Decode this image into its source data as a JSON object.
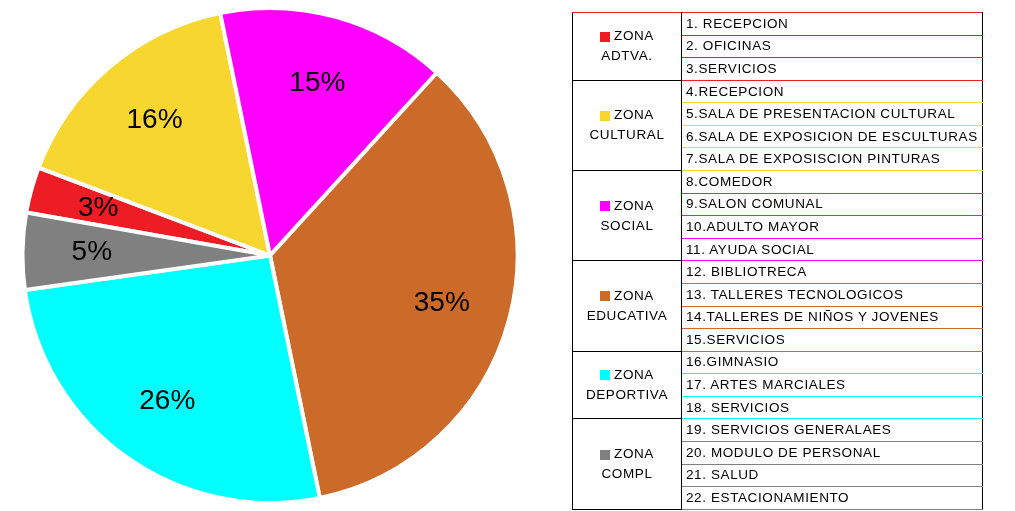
{
  "chart_data": {
    "type": "pie",
    "legend": "right",
    "categories": [
      "ZONA ADTVA.",
      "ZONA CULTURAL",
      "ZONA SOCIAL",
      "ZONA EDUCATIVA",
      "ZONA DEPORTIVA",
      "ZONA COMPL"
    ],
    "values": [
      3,
      16,
      15,
      35,
      26,
      5
    ],
    "value_labels": [
      "3%",
      "16%",
      "15%",
      "35%",
      "26%",
      "5%"
    ],
    "colors": [
      "#ee1c25",
      "#f7d630",
      "#ff00ff",
      "#cc6a2a",
      "#00ffff",
      "#808080"
    ],
    "annotations": [
      {
        "text": "1. RECEPCION",
        "x": "ZONA ADTVA."
      },
      {
        "text": "2. OFICINAS",
        "x": "ZONA ADTVA."
      },
      {
        "text": "3.SERVICIOS",
        "x": "ZONA ADTVA."
      },
      {
        "text": "4.RECEPCION",
        "x": "ZONA CULTURAL"
      },
      {
        "text": "5.SALA DE PRESENTACION CULTURAL",
        "x": "ZONA CULTURAL"
      },
      {
        "text": "6.SALA DE EXPOSICION DE ESCULTURAS",
        "x": "ZONA CULTURAL"
      },
      {
        "text": "7.SALA DE EXPOSISCION PINTURAS",
        "x": "ZONA CULTURAL"
      },
      {
        "text": "8.COMEDOR",
        "x": "ZONA SOCIAL"
      },
      {
        "text": "9.SALON COMUNAL",
        "x": "ZONA SOCIAL"
      },
      {
        "text": "10.ADULTO MAYOR",
        "x": "ZONA SOCIAL"
      },
      {
        "text": "11. AYUDA SOCIAL",
        "x": "ZONA SOCIAL"
      },
      {
        "text": "12. BIBLIOTRECA",
        "x": "ZONA EDUCATIVA"
      },
      {
        "text": "13. TALLERES TECNOLOGICOS",
        "x": "ZONA EDUCATIVA"
      },
      {
        "text": "14.TALLERES DE NIÑOS Y JOVENES",
        "x": "ZONA EDUCATIVA"
      },
      {
        "text": "15.SERVICIOS",
        "x": "ZONA EDUCATIVA"
      },
      {
        "text": "16.GIMNASIO",
        "x": "ZONA DEPORTIVA"
      },
      {
        "text": "17. ARTES MARCIALES",
        "x": "ZONA DEPORTIVA"
      },
      {
        "text": "18. SERVICIOS",
        "x": "ZONA DEPORTIVA"
      },
      {
        "text": "19. SERVICIOS GENERALAES",
        "x": "ZONA COMPL"
      },
      {
        "text": "20. MODULO DE PERSONAL",
        "x": "ZONA COMPL"
      },
      {
        "text": "21. SALUD",
        "x": "ZONA COMPL"
      },
      {
        "text": "22. ESTACIONAMIENTO",
        "x": "ZONA COMPL"
      }
    ]
  }
}
